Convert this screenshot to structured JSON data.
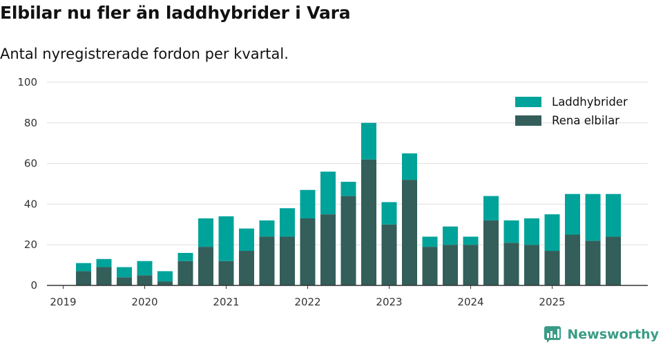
{
  "title": "Elbilar nu fler än laddhybrider i Vara",
  "subtitle": "Antal nyregistrerade fordon per kvartal.",
  "brand": "Newsworthy",
  "colors": {
    "laddhybrider": "#00a39a",
    "elbilar": "#335e5a",
    "grid": "#dddddd",
    "axis": "#333333",
    "brand": "#3a9c86"
  },
  "chart_data": {
    "type": "bar",
    "stacked": true,
    "title": "Elbilar nu fler än laddhybrider i Vara",
    "subtitle": "Antal nyregistrerade fordon per kvartal.",
    "xlabel": "",
    "ylabel": "",
    "ylim": [
      0,
      100
    ],
    "yticks": [
      0,
      20,
      40,
      60,
      80,
      100
    ],
    "xtick_labels": [
      "2019",
      "2020",
      "2021",
      "2022",
      "2023",
      "2024",
      "2025"
    ],
    "categories": [
      "2019 Q1",
      "2019 Q2",
      "2019 Q3",
      "2019 Q4",
      "2020 Q1",
      "2020 Q2",
      "2020 Q3",
      "2020 Q4",
      "2021 Q1",
      "2021 Q2",
      "2021 Q3",
      "2021 Q4",
      "2022 Q1",
      "2022 Q2",
      "2022 Q3",
      "2022 Q4",
      "2023 Q1",
      "2023 Q2",
      "2023 Q3",
      "2023 Q4",
      "2024 Q1",
      "2024 Q2",
      "2024 Q3",
      "2024 Q4",
      "2025 Q1",
      "2025 Q2",
      "2025 Q3",
      "2025 Q4"
    ],
    "legend_position": "top-right",
    "series": [
      {
        "name": "Rena elbilar",
        "values": [
          0,
          7,
          9,
          4,
          5,
          2,
          12,
          19,
          12,
          17,
          24,
          24,
          33,
          35,
          44,
          62,
          30,
          52,
          19,
          20,
          20,
          32,
          21,
          20,
          17,
          25,
          22,
          24
        ]
      },
      {
        "name": "Laddhybrider",
        "values": [
          0,
          4,
          4,
          5,
          7,
          5,
          4,
          14,
          22,
          11,
          8,
          14,
          14,
          21,
          7,
          18,
          11,
          13,
          5,
          9,
          4,
          12,
          11,
          13,
          18,
          20,
          23,
          21
        ]
      }
    ]
  }
}
